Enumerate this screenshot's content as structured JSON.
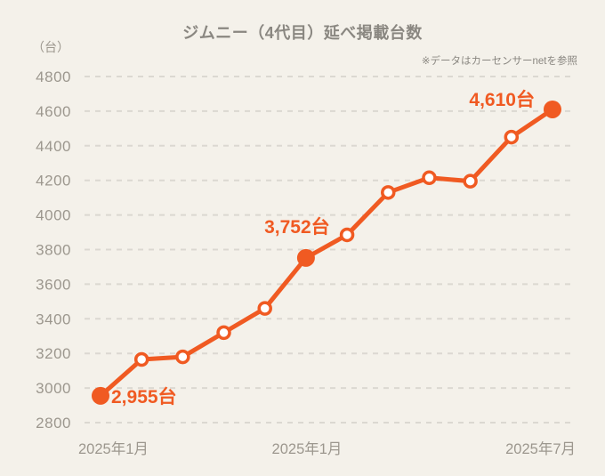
{
  "colors": {
    "background": "#f4f1ea",
    "accent_orange": "#f05a22",
    "title_gray": "#8a8781",
    "axis_gray": "#9c978e",
    "grid_gray": "#dbd8d1",
    "marker_hollow_fill": "#ffffff"
  },
  "header": {
    "title": "ジムニー（4代目）延べ掲載台数",
    "note": "※データはカーセンサーnetを参照",
    "unit": "（台）"
  },
  "chart_data": {
    "type": "line",
    "title": "ジムニー（4代目）延べ掲載台数",
    "ylabel": "（台）",
    "xlabel": "",
    "ylim": [
      2800,
      4800
    ],
    "y_ticks": [
      4800,
      4600,
      4400,
      4200,
      4000,
      3800,
      3600,
      3400,
      3200,
      3000,
      2800
    ],
    "x_tick_labels": [
      "2025年1月",
      "2025年1月",
      "2025年7月"
    ],
    "grid": "horizontal dashed",
    "legend_position": "none",
    "series_name": "延べ掲載台数",
    "values": [
      2955,
      3165,
      3180,
      3320,
      3460,
      3752,
      3885,
      4130,
      4215,
      4195,
      4450,
      4610
    ],
    "highlighted_points": [
      {
        "index": 0,
        "label": "2,955台"
      },
      {
        "index": 5,
        "label": "3,752台"
      },
      {
        "index": 11,
        "label": "4,610台"
      }
    ]
  }
}
